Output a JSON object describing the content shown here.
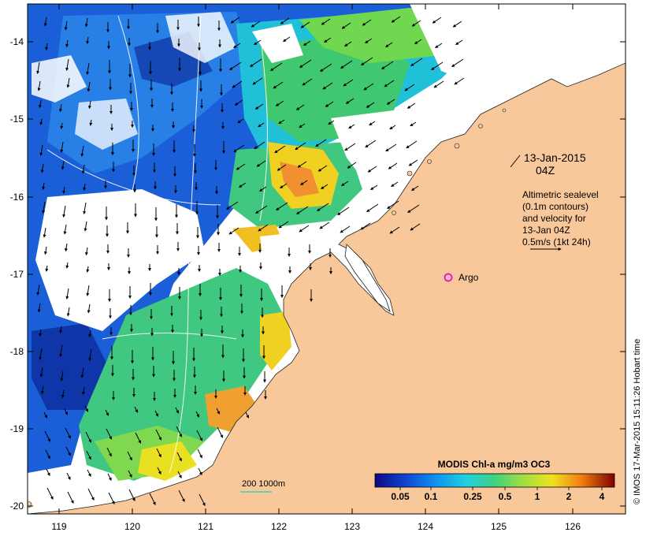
{
  "map": {
    "lon_ticks": [
      "119",
      "120",
      "121",
      "122",
      "123",
      "124",
      "125",
      "126"
    ],
    "lat_ticks": [
      "-14",
      "-15",
      "-16",
      "-17",
      "-18",
      "-19",
      "-20"
    ],
    "date_line1": "13-Jan-2015",
    "date_line2": "04Z",
    "legend_lines": [
      "Altimetric sealevel",
      "(0.1m contours)",
      "and velocity for",
      "13-Jan 04Z",
      "0.5m/s (1kt 24h)"
    ],
    "argo_label": "Argo",
    "depth_label": "200  1000m",
    "colorbar": {
      "title": "MODIS Chl-a mg/m3 OC3",
      "labels": [
        "0.05",
        "0.1",
        "0.25",
        "0.5",
        "1",
        "2",
        "4"
      ]
    },
    "credit": "© IMOS 17-Mar-2015 15:11:26 Hobart time",
    "colors": {
      "land": "#f8c89a",
      "argo_marker": "#e020e0",
      "depth_contour": "#40d0c0"
    }
  }
}
